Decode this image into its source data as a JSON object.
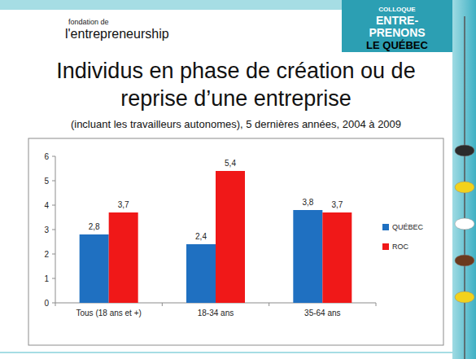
{
  "header": {
    "logo_left": [
      "fondation de",
      "l'entrepreneurship"
    ],
    "logo_right": [
      "COLLOQUE",
      "ENTRE-",
      "PRENONS",
      "LE QUÉBEC"
    ]
  },
  "chart_data": {
    "type": "bar",
    "title": "Individus en phase de création ou de reprise d’une entreprise",
    "subtitle": "(incluant les travailleurs autonomes),  5 dernières années, 2004 à 2009",
    "categories": [
      "Tous (18 ans et +)",
      "18-34 ans",
      "35-64 ans"
    ],
    "series": [
      {
        "name": "QUÉBEC",
        "color": "#1f70c1",
        "values": [
          2.8,
          2.4,
          3.8
        ],
        "value_labels": [
          "2,8",
          "2,4",
          "3,8"
        ]
      },
      {
        "name": "ROC",
        "color": "#f01818",
        "values": [
          3.7,
          5.4,
          3.7
        ],
        "value_labels": [
          "3,7",
          "5,4",
          "3,7"
        ]
      }
    ],
    "ylim": [
      0,
      6
    ],
    "yticks": [
      0,
      1,
      2,
      3,
      4,
      5,
      6
    ],
    "grid": false,
    "legend": "right",
    "data_labels": true
  }
}
